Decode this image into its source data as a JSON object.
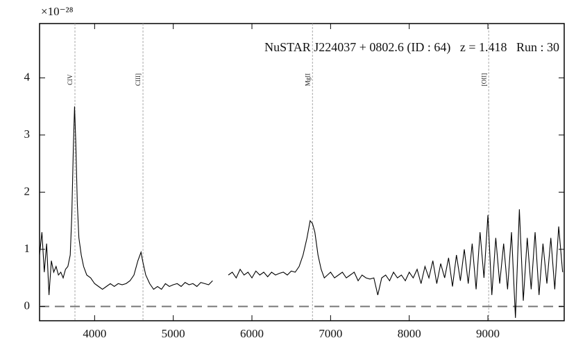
{
  "chart_data": {
    "type": "line",
    "title": "NuSTAR J224037 + 0802.6 (ID : 64)   z = 1.418   Run : 30",
    "y_multiplier": "×10⁻²⁸",
    "x": [
      3300,
      3330,
      3360,
      3390,
      3420,
      3450,
      3480,
      3510,
      3540,
      3570,
      3600,
      3630,
      3660,
      3690,
      3710,
      3730,
      3745,
      3760,
      3780,
      3800,
      3830,
      3860,
      3900,
      3950,
      4000,
      4050,
      4100,
      4150,
      4200,
      4250,
      4300,
      4350,
      4400,
      4450,
      4500,
      4550,
      4590,
      4610,
      4650,
      4700,
      4750,
      4800,
      4850,
      4900,
      4950,
      5000,
      5050,
      5100,
      5150,
      5200,
      5250,
      5300,
      5350,
      5400,
      5450,
      5500,
      5600,
      5700,
      5750,
      5800,
      5850,
      5900,
      5950,
      6000,
      6050,
      6100,
      6150,
      6200,
      6250,
      6300,
      6350,
      6400,
      6450,
      6500,
      6550,
      6600,
      6650,
      6700,
      6740,
      6770,
      6800,
      6840,
      6880,
      6920,
      6960,
      7000,
      7050,
      7100,
      7150,
      7200,
      7250,
      7300,
      7350,
      7400,
      7450,
      7500,
      7550,
      7600,
      7650,
      7700,
      7750,
      7800,
      7850,
      7900,
      7950,
      8000,
      8050,
      8100,
      8150,
      8200,
      8250,
      8300,
      8350,
      8400,
      8450,
      8500,
      8550,
      8600,
      8650,
      8700,
      8750,
      8800,
      8850,
      8900,
      8950,
      9000,
      9050,
      9100,
      9150,
      9200,
      9250,
      9300,
      9350,
      9400,
      9450,
      9500,
      9550,
      9600,
      9650,
      9700,
      9750,
      9800,
      9850,
      9900,
      9950
    ],
    "series": [
      {
        "color": "#000000",
        "values": [
          0.9,
          1.3,
          0.6,
          1.1,
          0.2,
          0.8,
          0.6,
          0.7,
          0.55,
          0.6,
          0.5,
          0.65,
          0.7,
          0.9,
          1.6,
          2.8,
          3.5,
          2.9,
          1.8,
          1.2,
          0.9,
          0.7,
          0.55,
          0.5,
          0.4,
          0.35,
          0.3,
          0.35,
          0.4,
          0.35,
          0.4,
          0.38,
          0.4,
          0.45,
          0.55,
          0.8,
          0.95,
          0.8,
          0.55,
          0.4,
          0.3,
          0.35,
          0.3,
          0.4,
          0.35,
          0.38,
          0.4,
          0.35,
          0.42,
          0.38,
          0.4,
          0.35,
          0.42,
          0.4,
          0.38,
          0.45,
          null,
          0.55,
          0.6,
          0.5,
          0.65,
          0.55,
          0.6,
          0.5,
          0.62,
          0.55,
          0.6,
          0.52,
          0.6,
          0.55,
          0.58,
          0.6,
          0.55,
          0.62,
          0.6,
          0.7,
          0.9,
          1.2,
          1.5,
          1.45,
          1.3,
          0.9,
          0.65,
          0.5,
          0.55,
          0.6,
          0.5,
          0.55,
          0.6,
          0.5,
          0.55,
          0.6,
          0.45,
          0.55,
          0.5,
          0.48,
          0.5,
          0.2,
          0.5,
          0.55,
          0.45,
          0.6,
          0.5,
          0.55,
          0.45,
          0.6,
          0.5,
          0.65,
          0.4,
          0.7,
          0.5,
          0.8,
          0.4,
          0.75,
          0.5,
          0.85,
          0.35,
          0.9,
          0.45,
          1.0,
          0.4,
          1.1,
          0.3,
          1.3,
          0.5,
          1.6,
          0.2,
          1.2,
          0.4,
          1.1,
          0.3,
          1.3,
          -0.2,
          1.7,
          0.1,
          1.2,
          0.3,
          1.3,
          0.2,
          1.1,
          0.4,
          1.2,
          0.3,
          1.4,
          0.6
        ]
      }
    ],
    "lines": [
      {
        "label": "CIV",
        "x": 3750
      },
      {
        "label": "CIII]",
        "x": 4615
      },
      {
        "label": "MgII",
        "x": 6770
      },
      {
        "label": "[OII]",
        "x": 9010
      }
    ],
    "baseline": 0,
    "xlim": [
      3300,
      9970
    ],
    "ylim": [
      -0.25,
      4.95
    ],
    "xticks": [
      4000,
      5000,
      6000,
      7000,
      8000,
      9000
    ],
    "yticks": [
      0,
      1,
      2,
      3,
      4
    ]
  }
}
